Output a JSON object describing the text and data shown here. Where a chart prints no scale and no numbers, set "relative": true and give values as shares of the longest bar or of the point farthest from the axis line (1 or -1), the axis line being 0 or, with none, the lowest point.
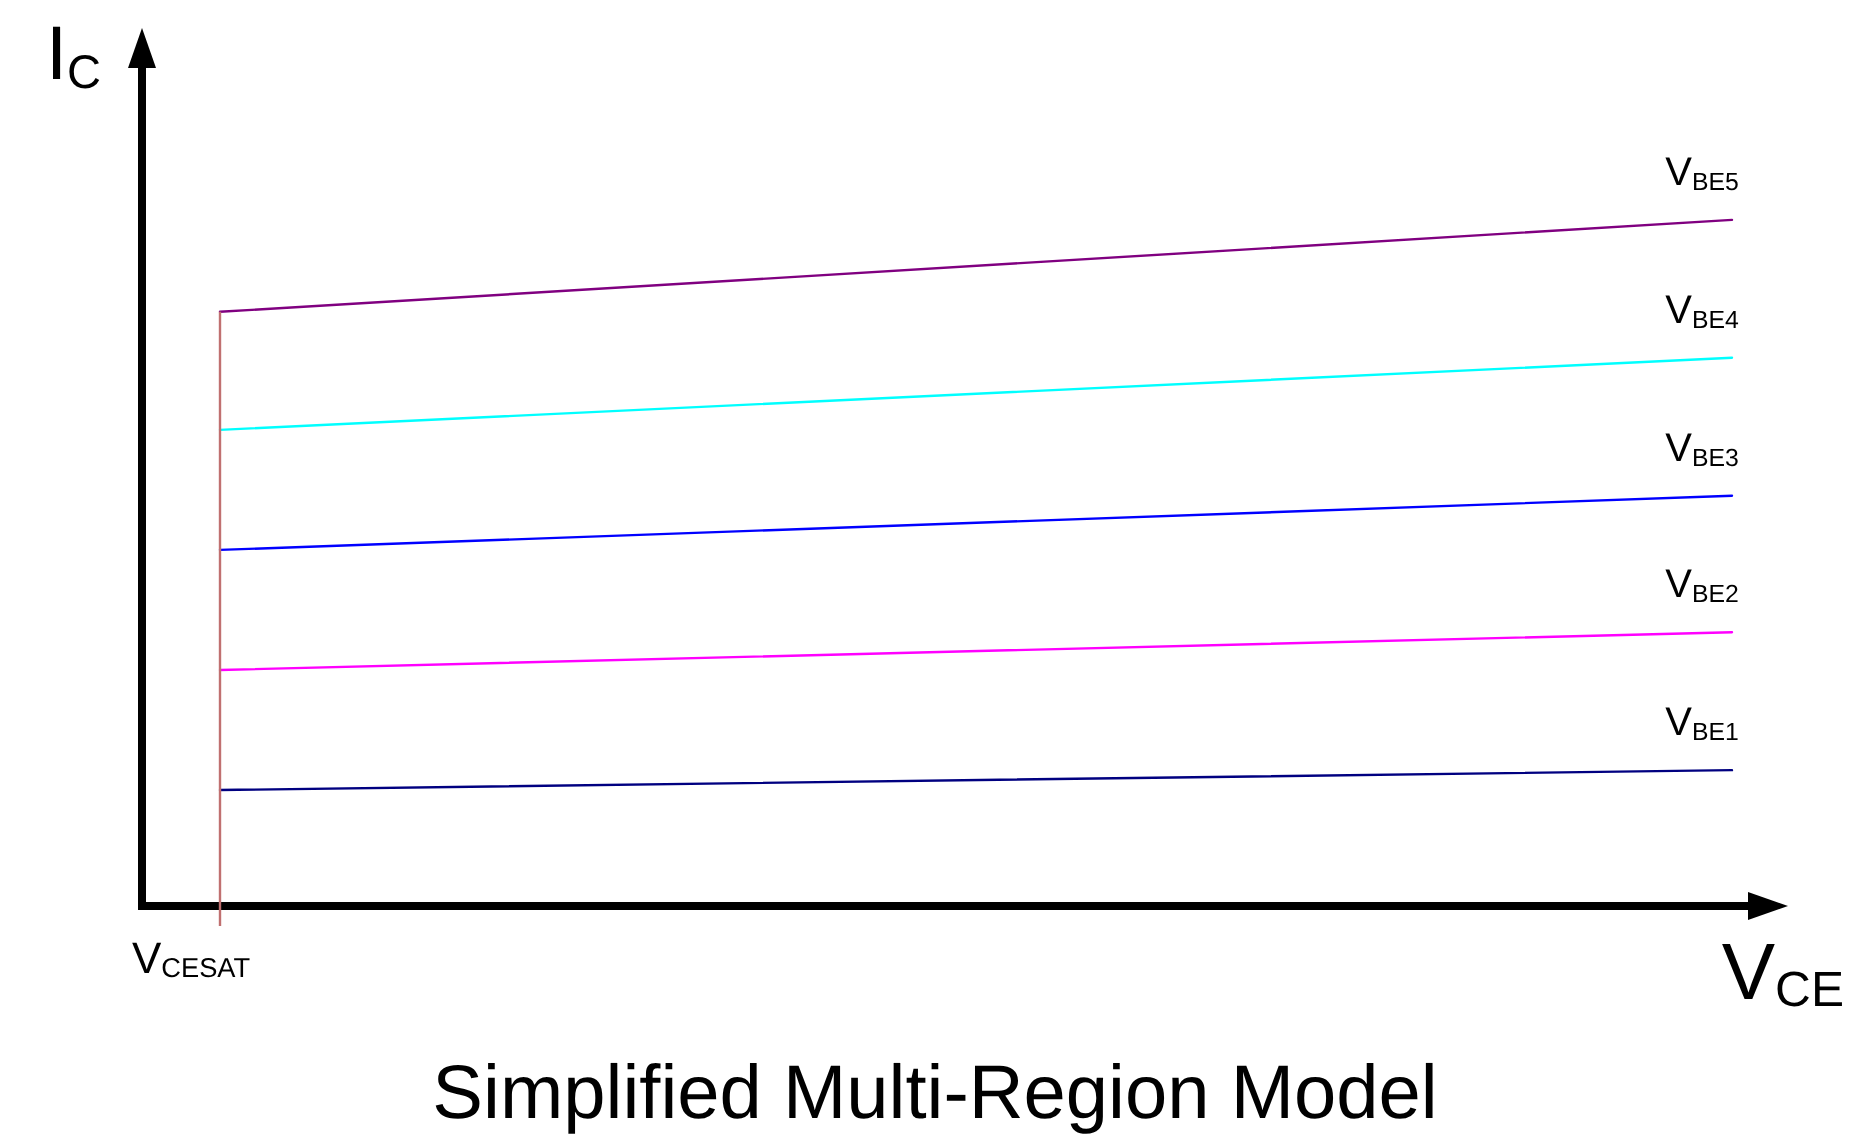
{
  "chart_data": {
    "type": "line",
    "title": "Simplified Multi-Region Model",
    "xlabel": "V$_{CE}$",
    "ylabel": "I$_{C}$",
    "relative": true,
    "categories": [
      null,
      null
    ],
    "annotations": [
      "V$_{CESAT}$"
    ],
    "series": [
      {
        "name": "V$_{BE1}$",
        "color": "#000080",
        "values": [
          0.169,
          0.198
        ]
      },
      {
        "name": "V$_{BE2}$",
        "color": "#ff00ff",
        "values": [
          0.344,
          0.399
        ]
      },
      {
        "name": "V$_{BE3}$",
        "color": "#0000ff",
        "values": [
          0.519,
          0.598
        ]
      },
      {
        "name": "V$_{BE4}$",
        "color": "#00ffff",
        "values": [
          0.694,
          0.799
        ]
      },
      {
        "name": "V$_{BE5}$",
        "color": "#800080",
        "values": [
          0.866,
          1.0
        ]
      }
    ],
    "grid": false,
    "legend": false,
    "marker": "none",
    "line_style": "solid"
  }
}
